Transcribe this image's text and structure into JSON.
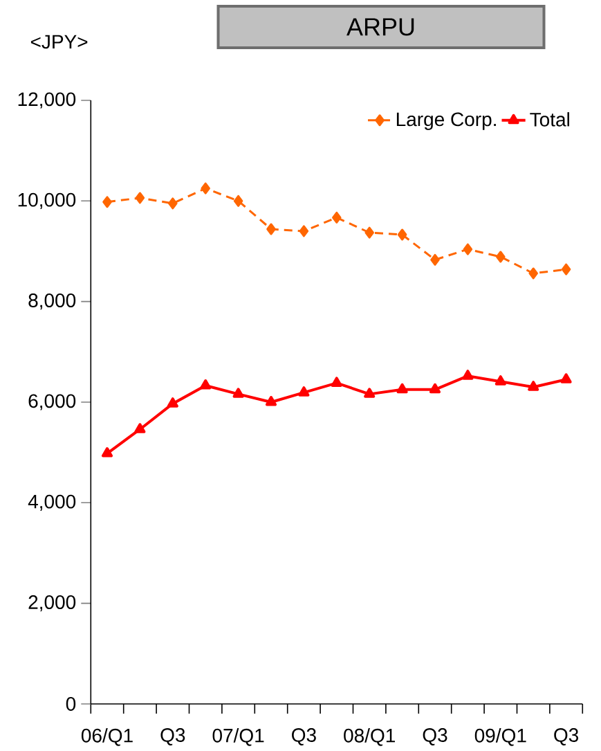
{
  "chart_data": {
    "type": "line",
    "title": "ARPU",
    "ylabel": "<JPY>",
    "categories": [
      "06/Q1",
      null,
      "Q3",
      null,
      "07/Q1",
      null,
      "Q3",
      null,
      "08/Q1",
      null,
      "Q3",
      null,
      "09/Q1",
      null,
      "Q3"
    ],
    "series": [
      {
        "name": "Large Corp.",
        "color": "#ff6600",
        "marker": "diamond",
        "line_style": "dashed",
        "values": [
          9980,
          10060,
          9950,
          10250,
          10000,
          9440,
          9400,
          9670,
          9370,
          9330,
          8830,
          9040,
          8890,
          8560,
          8640
        ]
      },
      {
        "name": "Total",
        "color": "#ff0000",
        "marker": "triangle",
        "line_style": "solid",
        "values": [
          4980,
          5460,
          5970,
          6330,
          6160,
          6000,
          6190,
          6380,
          6160,
          6250,
          6250,
          6520,
          6410,
          6300,
          6450
        ]
      }
    ],
    "ylim": [
      0,
      12000
    ],
    "yticks": [
      {
        "value": 0,
        "label": "0"
      },
      {
        "value": 2000,
        "label": "2,000"
      },
      {
        "value": 4000,
        "label": "4,000"
      },
      {
        "value": 6000,
        "label": "6,000"
      },
      {
        "value": 8000,
        "label": "8,000"
      },
      {
        "value": 10000,
        "label": "10,000"
      },
      {
        "value": 12000,
        "label": "12,000"
      }
    ],
    "legend": "top right"
  }
}
